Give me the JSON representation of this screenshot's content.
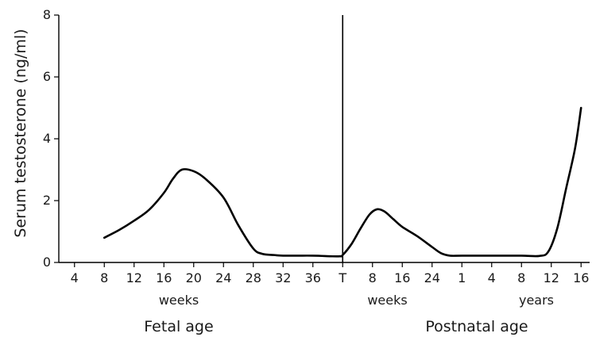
{
  "chart_data": {
    "type": "line",
    "ylabel": "Serum testosterone (ng/ml)",
    "ylim": [
      0,
      8
    ],
    "y_ticks": [
      "0",
      "2",
      "4",
      "6",
      "8"
    ],
    "x_tick_labels": [
      "4",
      "8",
      "12",
      "16",
      "20",
      "24",
      "28",
      "32",
      "36",
      "T",
      "8",
      "16",
      "24",
      "1",
      "4",
      "8",
      "12",
      "16"
    ],
    "unit_labels": [
      {
        "text": "weeks",
        "tick_index": 3.5
      },
      {
        "text": "weeks",
        "tick_index": 10.5
      },
      {
        "text": "years",
        "tick_index": 15.5
      }
    ],
    "section_labels": [
      {
        "text": "Fetal age",
        "tick_index": 3.5
      },
      {
        "text": "Postnatal age",
        "tick_index": 13.5
      }
    ],
    "divider_tick_index": 9,
    "grid": false,
    "legend": "none",
    "series": [
      {
        "points": [
          [
            1,
            0.8
          ],
          [
            1.5,
            1.05
          ],
          [
            2,
            1.35
          ],
          [
            2.5,
            1.7
          ],
          [
            3,
            2.25
          ],
          [
            3.3,
            2.7
          ],
          [
            3.6,
            3.0
          ],
          [
            4,
            2.95
          ],
          [
            4.4,
            2.7
          ],
          [
            5,
            2.1
          ],
          [
            5.5,
            1.2
          ],
          [
            6,
            0.45
          ],
          [
            6.3,
            0.28
          ],
          [
            6.7,
            0.24
          ],
          [
            7,
            0.22
          ],
          [
            8,
            0.22
          ],
          [
            8.6,
            0.2
          ],
          [
            8.9,
            0.2
          ],
          [
            9,
            0.24
          ],
          [
            9.3,
            0.6
          ],
          [
            9.6,
            1.1
          ],
          [
            9.9,
            1.55
          ],
          [
            10.15,
            1.72
          ],
          [
            10.4,
            1.65
          ],
          [
            10.7,
            1.4
          ],
          [
            11,
            1.15
          ],
          [
            11.5,
            0.85
          ],
          [
            12,
            0.5
          ],
          [
            12.3,
            0.3
          ],
          [
            12.6,
            0.22
          ],
          [
            13,
            0.22
          ],
          [
            14,
            0.22
          ],
          [
            15,
            0.22
          ],
          [
            15.6,
            0.21
          ],
          [
            15.9,
            0.35
          ],
          [
            16.2,
            1.1
          ],
          [
            16.5,
            2.4
          ],
          [
            16.8,
            3.7
          ],
          [
            17,
            5.0
          ]
        ]
      }
    ]
  }
}
